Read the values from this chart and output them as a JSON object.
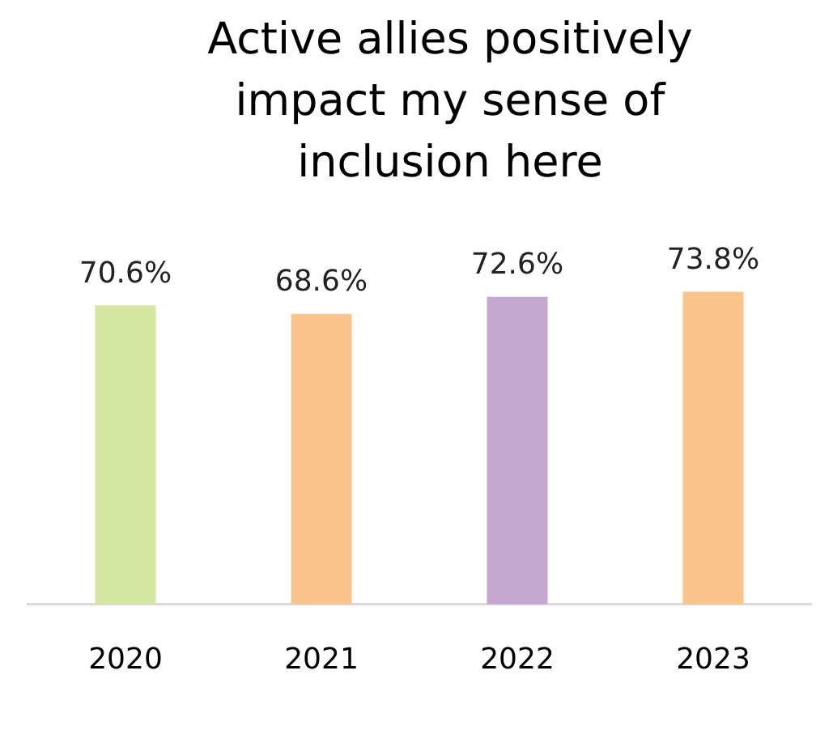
{
  "chart_data": {
    "type": "bar",
    "title": "Active allies positively impact my sense of inclusion here",
    "categories": [
      "2020",
      "2021",
      "2022",
      "2023"
    ],
    "values": [
      70.6,
      68.6,
      72.6,
      73.8
    ],
    "colors": [
      "#d4e6a1",
      "#f9c48c",
      "#c5a6cf",
      "#f9c48c"
    ],
    "value_labels": [
      "70.6%",
      "68.6%",
      "72.6%",
      "73.8%"
    ],
    "grid": false,
    "legend": false
  }
}
